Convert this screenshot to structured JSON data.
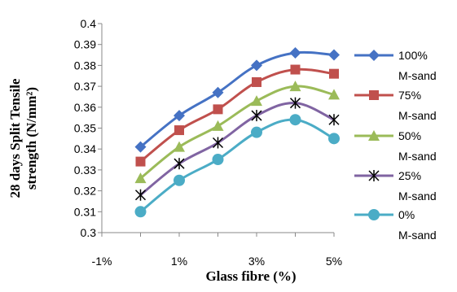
{
  "chart_data": {
    "type": "line",
    "title": "",
    "xlabel": "Glass fibre (%)",
    "ylabel_line1": "28 days Split Tensile",
    "ylabel_line2": "strength (N/mm²)",
    "ylim": [
      0.3,
      0.4
    ],
    "y_ticks": [
      "0.3",
      "0.31",
      "0.32",
      "0.33",
      "0.34",
      "0.35",
      "0.36",
      "0.37",
      "0.38",
      "0.39",
      "0.4"
    ],
    "x_ticks": [
      "-1%",
      "1%",
      "3%",
      "5%"
    ],
    "x_tick_values": [
      -1,
      1,
      3,
      5
    ],
    "xlim": [
      -1,
      5
    ],
    "x": [
      0,
      1,
      2,
      3,
      4,
      5
    ],
    "grid": false,
    "legend_position": "right",
    "series": [
      {
        "name": "100%",
        "name_line2": "M-sand",
        "values": [
          0.341,
          0.356,
          0.367,
          0.38,
          0.386,
          0.385
        ],
        "color": "#4572c4",
        "marker": "diamond"
      },
      {
        "name": "75%",
        "name_line2": "M-sand",
        "values": [
          0.334,
          0.349,
          0.359,
          0.372,
          0.378,
          0.376
        ],
        "color": "#c0504d",
        "marker": "square"
      },
      {
        "name": "50%",
        "name_line2": "M-sand",
        "values": [
          0.326,
          0.341,
          0.351,
          0.363,
          0.37,
          0.366
        ],
        "color": "#9bbb59",
        "marker": "triangle"
      },
      {
        "name": "25%",
        "name_line2": "M-sand",
        "values": [
          0.318,
          0.333,
          0.343,
          0.356,
          0.362,
          0.354
        ],
        "color": "#8064a2",
        "marker": "star"
      },
      {
        "name": "0%",
        "name_line2": "M-sand",
        "values": [
          0.31,
          0.325,
          0.335,
          0.348,
          0.354,
          0.345
        ],
        "color": "#4bacc6",
        "marker": "circle"
      }
    ]
  }
}
